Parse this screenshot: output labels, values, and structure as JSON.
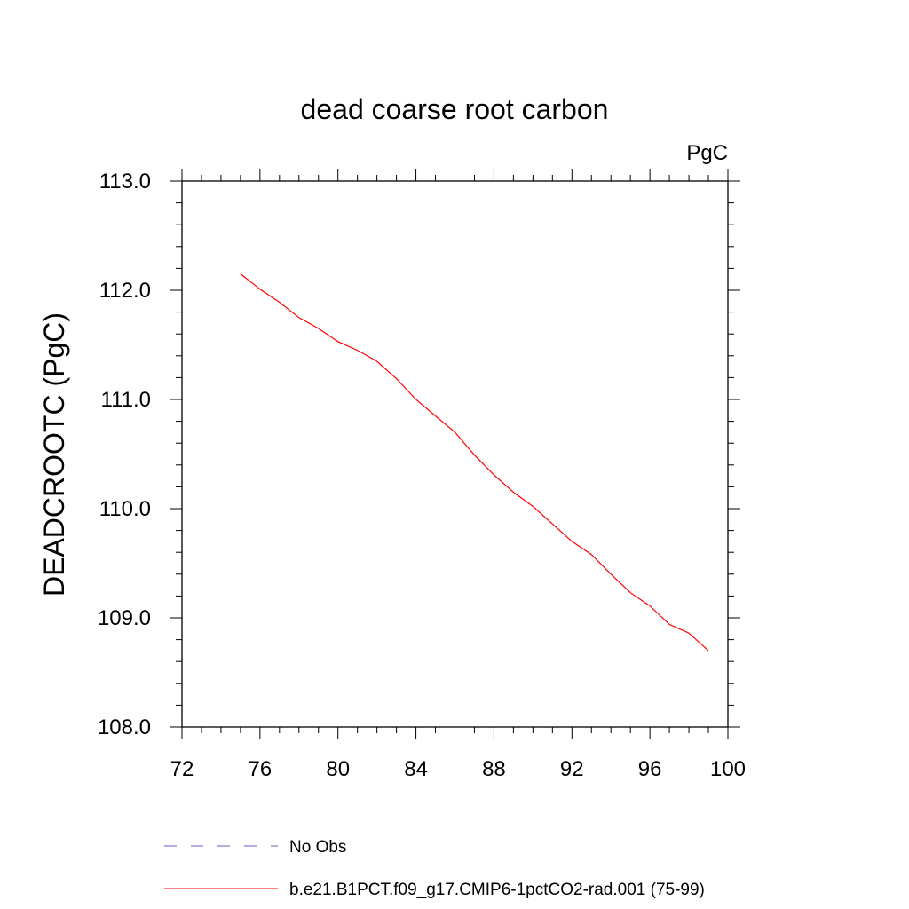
{
  "chart_data": {
    "type": "line",
    "title": "dead coarse root carbon",
    "units_label": "PgC",
    "ylabel": "DEADCROOTC  (PgC)",
    "xlabel": "",
    "xlim": [
      72,
      100
    ],
    "ylim": [
      108.0,
      113.0
    ],
    "x_ticks": [
      72,
      76,
      80,
      84,
      88,
      92,
      96,
      100
    ],
    "x_tick_labels": [
      "72",
      "76",
      "80",
      "84",
      "88",
      "92",
      "96",
      "100"
    ],
    "y_ticks": [
      108.0,
      109.0,
      110.0,
      111.0,
      112.0,
      113.0
    ],
    "y_tick_labels": [
      "108.0",
      "109.0",
      "110.0",
      "111.0",
      "112.0",
      "113.0"
    ],
    "grid": false,
    "legend_placement": "bottom",
    "series": [
      {
        "name": "b.e21.B1PCT.f09_g17.CMIP6-1pctCO2-rad.001 (75-99)",
        "color": "#ff0000",
        "style": "solid",
        "x": [
          75,
          76,
          77,
          78,
          79,
          80,
          81,
          82,
          83,
          84,
          85,
          86,
          87,
          88,
          89,
          90,
          91,
          92,
          93,
          94,
          95,
          96,
          97,
          98,
          99
        ],
        "y": [
          112.15,
          112.01,
          111.89,
          111.75,
          111.65,
          111.53,
          111.45,
          111.35,
          111.19,
          111.0,
          110.85,
          110.7,
          110.49,
          110.31,
          110.15,
          110.02,
          109.86,
          109.7,
          109.58,
          109.4,
          109.23,
          109.11,
          108.94,
          108.86,
          108.7
        ]
      }
    ],
    "legend": [
      {
        "label": "No Obs",
        "color": "#6a5acd",
        "style": "dashed"
      },
      {
        "label": "b.e21.B1PCT.f09_g17.CMIP6-1pctCO2-rad.001 (75-99)",
        "color": "#ff0000",
        "style": "solid"
      }
    ]
  }
}
